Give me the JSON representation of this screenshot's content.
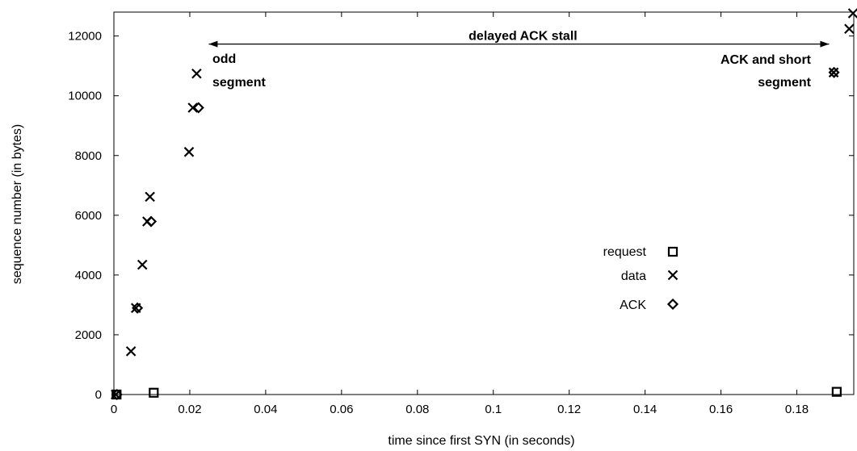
{
  "chart_data": {
    "type": "scatter",
    "xlabel": "time since first SYN (in seconds)",
    "ylabel": "sequence number (in bytes)",
    "xlim": [
      0,
      0.195
    ],
    "ylim": [
      0,
      12800
    ],
    "xticks": [
      0,
      0.02,
      0.04,
      0.06,
      0.08,
      0.1,
      0.12,
      0.14,
      0.16,
      0.18
    ],
    "xtick_labels": [
      "0",
      "0.02",
      "0.04",
      "0.06",
      "0.08",
      "0.1",
      "0.12",
      "0.14",
      "0.16",
      "0.18"
    ],
    "yticks": [
      0,
      2000,
      4000,
      6000,
      8000,
      10000,
      12000
    ],
    "ytick_labels": [
      "0",
      "2000",
      "4000",
      "6000",
      "8000",
      "10000",
      "12000"
    ],
    "grid": false,
    "legend": "right",
    "series": [
      {
        "name": "request",
        "marker": "square",
        "points": [
          [
            0.0007,
            0
          ],
          [
            0.0105,
            60
          ],
          [
            0.1905,
            90
          ]
        ]
      },
      {
        "name": "data",
        "marker": "x",
        "points": [
          [
            0.0005,
            0
          ],
          [
            0.0045,
            1448
          ],
          [
            0.0058,
            2896
          ],
          [
            0.0075,
            4344
          ],
          [
            0.0088,
            5792
          ],
          [
            0.0095,
            6620
          ],
          [
            0.0198,
            8120
          ],
          [
            0.0208,
            9600
          ],
          [
            0.0218,
            10740
          ],
          [
            0.1897,
            10780
          ],
          [
            0.1938,
            12240
          ],
          [
            0.1948,
            12760
          ]
        ]
      },
      {
        "name": "ACK",
        "marker": "diamond",
        "points": [
          [
            0.0008,
            0
          ],
          [
            0.0062,
            2896
          ],
          [
            0.0098,
            5792
          ],
          [
            0.0223,
            9600
          ],
          [
            0.1898,
            10780
          ]
        ]
      }
    ],
    "annotations": [
      {
        "id": "stall",
        "text": "delayed ACK stall",
        "x_from": 0.025,
        "x_to": 0.1885,
        "y": 11730
      },
      {
        "id": "odd",
        "lines": [
          "odd",
          "segment"
        ]
      },
      {
        "id": "short",
        "lines": [
          "ACK and short",
          "segment"
        ]
      }
    ]
  }
}
